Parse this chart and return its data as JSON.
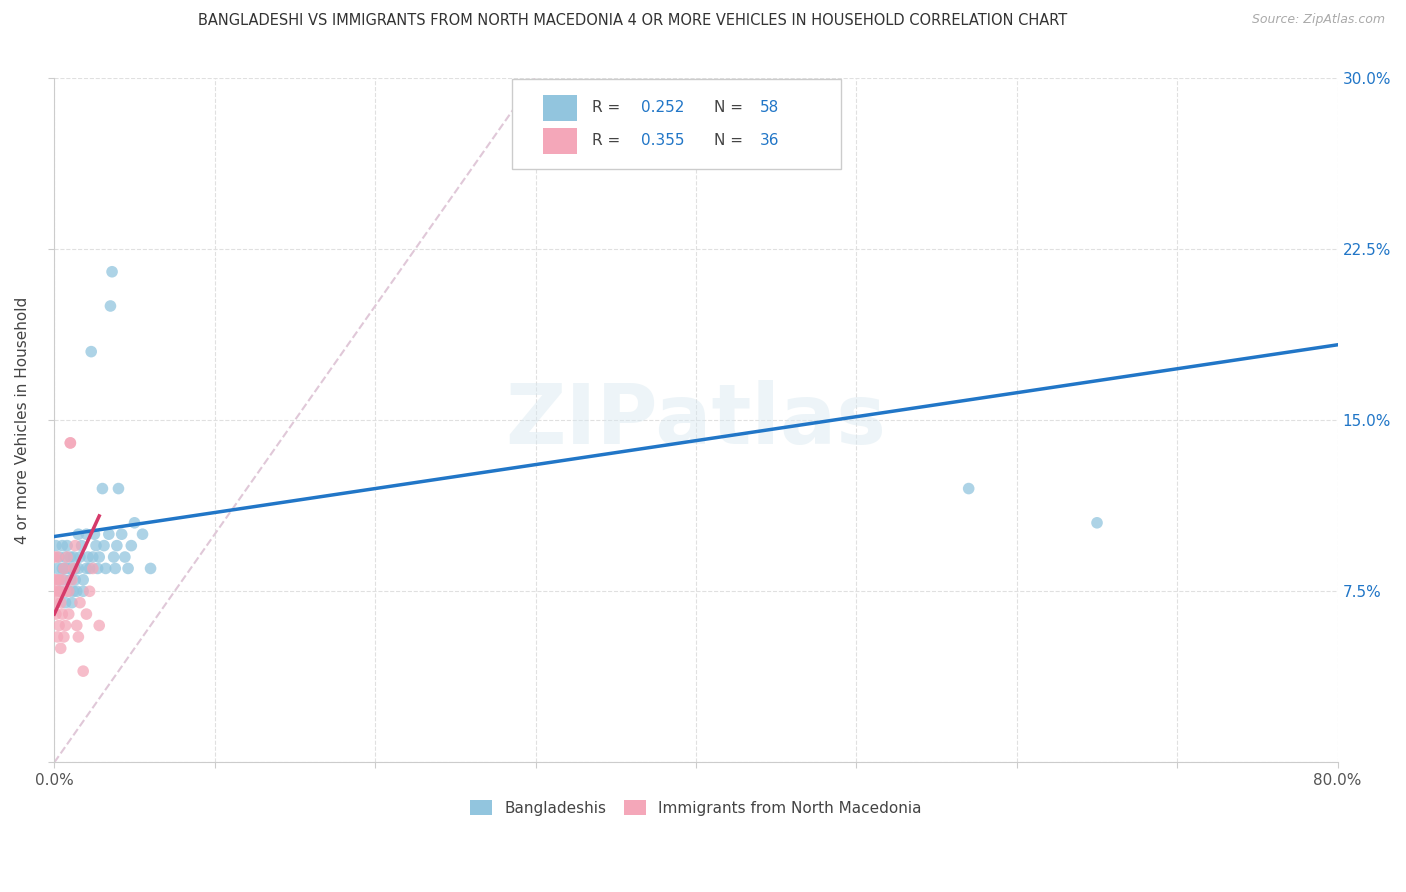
{
  "title": "BANGLADESHI VS IMMIGRANTS FROM NORTH MACEDONIA 4 OR MORE VEHICLES IN HOUSEHOLD CORRELATION CHART",
  "source": "Source: ZipAtlas.com",
  "ylabel": "4 or more Vehicles in Household",
  "xmin": 0.0,
  "xmax": 0.8,
  "ymin": 0.0,
  "ymax": 0.3,
  "blue_color": "#92c5de",
  "pink_color": "#f4a7b9",
  "blue_line_color": "#2176c7",
  "pink_line_color": "#d63a6a",
  "diagonal_color": "#e0c8d8",
  "watermark": "ZIPatlas",
  "bottom_legend_blue": "Bangladeshis",
  "bottom_legend_pink": "Immigrants from North Macedonia",
  "marker_size": 70,
  "blue_scatter_x": [
    0.001,
    0.002,
    0.003,
    0.003,
    0.004,
    0.005,
    0.005,
    0.006,
    0.006,
    0.007,
    0.007,
    0.008,
    0.008,
    0.009,
    0.01,
    0.01,
    0.01,
    0.011,
    0.012,
    0.012,
    0.013,
    0.013,
    0.014,
    0.015,
    0.015,
    0.016,
    0.017,
    0.018,
    0.018,
    0.02,
    0.02,
    0.021,
    0.022,
    0.023,
    0.024,
    0.025,
    0.026,
    0.027,
    0.028,
    0.03,
    0.031,
    0.032,
    0.034,
    0.035,
    0.036,
    0.037,
    0.038,
    0.039,
    0.04,
    0.042,
    0.044,
    0.046,
    0.048,
    0.05,
    0.055,
    0.06,
    0.57,
    0.65
  ],
  "blue_scatter_y": [
    0.095,
    0.085,
    0.09,
    0.08,
    0.075,
    0.085,
    0.095,
    0.08,
    0.085,
    0.07,
    0.09,
    0.085,
    0.095,
    0.075,
    0.08,
    0.085,
    0.09,
    0.07,
    0.075,
    0.09,
    0.08,
    0.085,
    0.075,
    0.1,
    0.085,
    0.09,
    0.095,
    0.075,
    0.08,
    0.085,
    0.1,
    0.09,
    0.085,
    0.18,
    0.09,
    0.1,
    0.095,
    0.085,
    0.09,
    0.12,
    0.095,
    0.085,
    0.1,
    0.2,
    0.215,
    0.09,
    0.085,
    0.095,
    0.12,
    0.1,
    0.09,
    0.085,
    0.095,
    0.105,
    0.1,
    0.085,
    0.12,
    0.105
  ],
  "pink_scatter_x": [
    0.0,
    0.0,
    0.0,
    0.001,
    0.001,
    0.001,
    0.002,
    0.002,
    0.002,
    0.003,
    0.003,
    0.003,
    0.004,
    0.004,
    0.005,
    0.005,
    0.006,
    0.006,
    0.007,
    0.007,
    0.008,
    0.009,
    0.009,
    0.01,
    0.01,
    0.011,
    0.012,
    0.013,
    0.014,
    0.015,
    0.016,
    0.018,
    0.02,
    0.022,
    0.024,
    0.028
  ],
  "pink_scatter_y": [
    0.08,
    0.09,
    0.075,
    0.065,
    0.08,
    0.07,
    0.055,
    0.075,
    0.09,
    0.06,
    0.08,
    0.075,
    0.05,
    0.07,
    0.065,
    0.08,
    0.055,
    0.085,
    0.06,
    0.075,
    0.09,
    0.065,
    0.075,
    0.14,
    0.14,
    0.08,
    0.085,
    0.095,
    0.06,
    0.055,
    0.07,
    0.04,
    0.065,
    0.075,
    0.085,
    0.06
  ],
  "blue_line_x0": 0.0,
  "blue_line_x1": 0.8,
  "blue_line_y0": 0.099,
  "blue_line_y1": 0.183,
  "pink_line_x0": 0.0,
  "pink_line_x1": 0.028,
  "pink_line_y0": 0.065,
  "pink_line_y1": 0.108
}
